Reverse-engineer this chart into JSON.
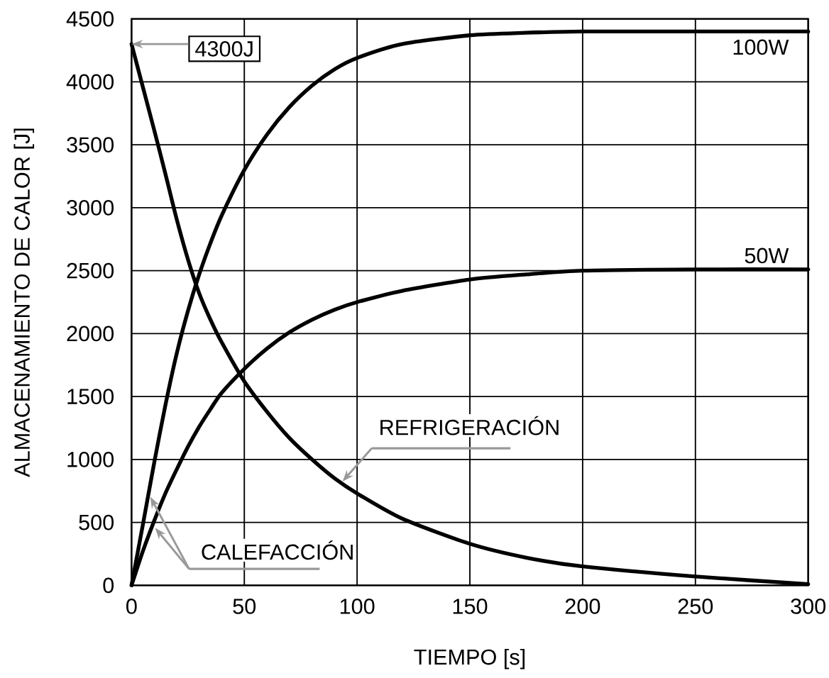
{
  "chart_data": {
    "type": "line",
    "xlabel": "TIEMPO [s]",
    "ylabel": "ALMACENAMIENTO DE CALOR [J]",
    "x": [
      0,
      5,
      10,
      15,
      20,
      25,
      30,
      35,
      40,
      50,
      60,
      70,
      80,
      90,
      100,
      120,
      150,
      175,
      200,
      250,
      300
    ],
    "series": [
      {
        "name": "100W",
        "color": "#000000",
        "values": [
          0,
          480,
          970,
          1430,
          1840,
          2180,
          2470,
          2720,
          2940,
          3300,
          3580,
          3800,
          3970,
          4100,
          4190,
          4300,
          4370,
          4390,
          4400,
          4400,
          4400
        ]
      },
      {
        "name": "50W",
        "color": "#000000",
        "values": [
          0,
          270,
          510,
          730,
          920,
          1100,
          1260,
          1400,
          1530,
          1720,
          1880,
          2010,
          2110,
          2190,
          2250,
          2340,
          2430,
          2470,
          2500,
          2510,
          2510
        ]
      },
      {
        "name": "REFRIGERACIÓN",
        "color": "#000000",
        "values": [
          4300,
          3960,
          3620,
          3270,
          2910,
          2590,
          2320,
          2110,
          1930,
          1620,
          1380,
          1170,
          1000,
          850,
          730,
          530,
          330,
          220,
          150,
          70,
          10
        ]
      }
    ],
    "xlim": [
      0,
      300
    ],
    "ylim": [
      0,
      4500
    ],
    "xticks": [
      0,
      50,
      100,
      150,
      200,
      250,
      300
    ],
    "yticks": [
      0,
      500,
      1000,
      1500,
      2000,
      2500,
      3000,
      3500,
      4000,
      4500
    ],
    "grid": true,
    "marker": "none",
    "line_style": "solid",
    "annotations": [
      {
        "text": "4300J",
        "x": 0,
        "y": 4300
      },
      {
        "text": "CALEFACCIÓN",
        "x": 7.5,
        "y": 730
      }
    ]
  }
}
